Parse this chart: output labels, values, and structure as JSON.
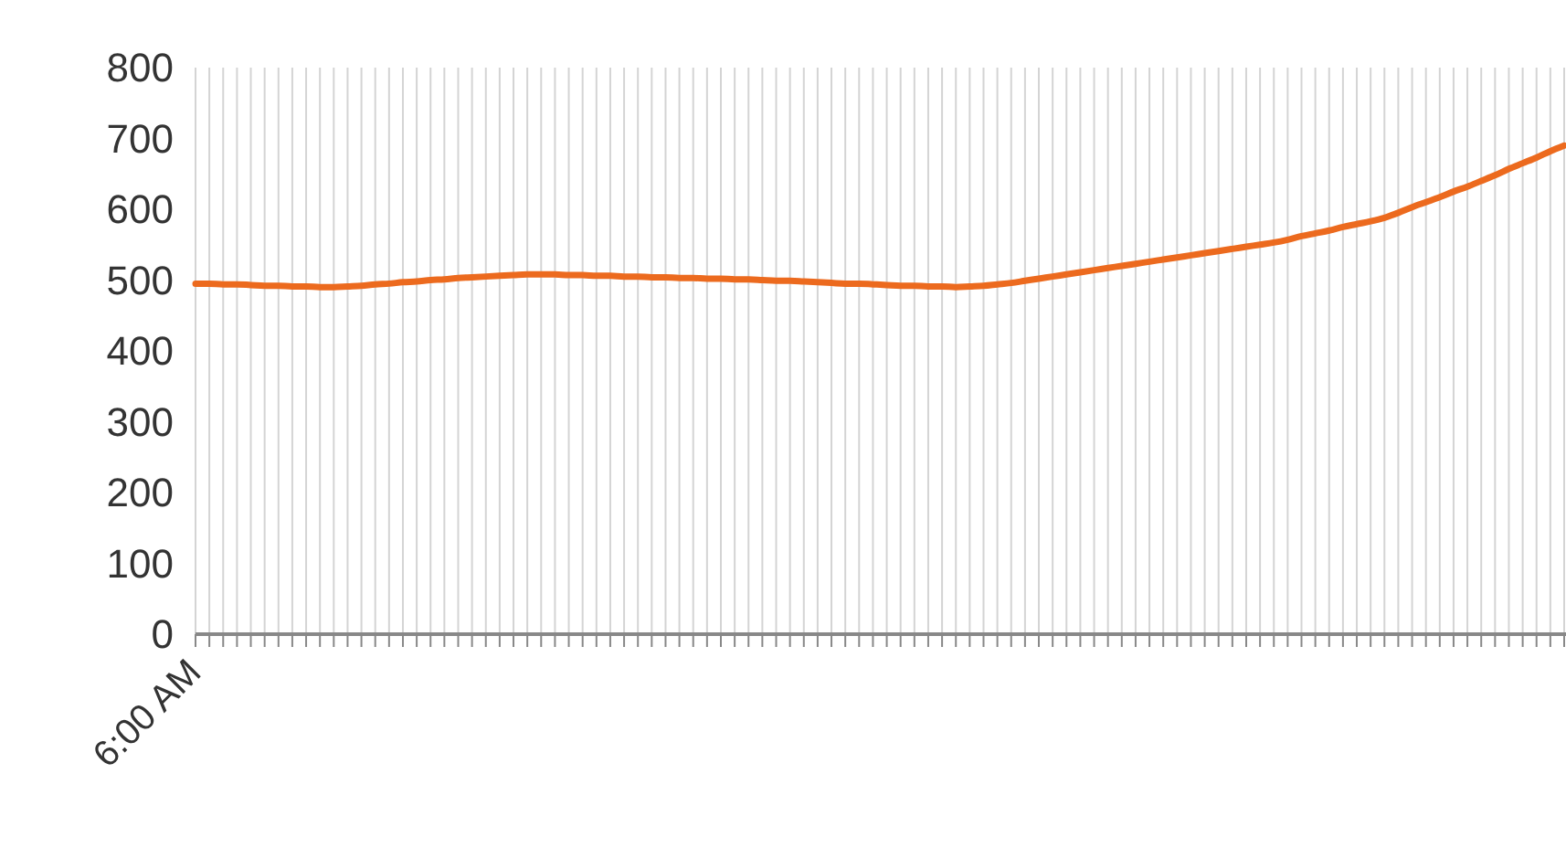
{
  "chart_data": {
    "type": "line",
    "categories": [
      "6:00 AM",
      null,
      null,
      null,
      null,
      null,
      null,
      null,
      null,
      null,
      null,
      null,
      null,
      null,
      null,
      null,
      null,
      null,
      null,
      null,
      null,
      null,
      null,
      null,
      null,
      null,
      null,
      null,
      null,
      null,
      null,
      null,
      null,
      null,
      null,
      null,
      null,
      null,
      null,
      null,
      null,
      null,
      null,
      null,
      null,
      null,
      null,
      null,
      null,
      null,
      null,
      null,
      null,
      null,
      null,
      null,
      null,
      null,
      null,
      null,
      null,
      null,
      null,
      null,
      null,
      null,
      null,
      null,
      null,
      null,
      null,
      null,
      null,
      null,
      null,
      null,
      null,
      null,
      null,
      null,
      null,
      null,
      null,
      null,
      null,
      null,
      null,
      null,
      null,
      null,
      null,
      null,
      null,
      null,
      null,
      null,
      null,
      null,
      null,
      null
    ],
    "series": [
      {
        "color": "#ec6a1e",
        "values": [
          495,
          495,
          494,
          494,
          493,
          492,
          492,
          491,
          491,
          490,
          490,
          491,
          492,
          494,
          495,
          497,
          498,
          500,
          501,
          503,
          504,
          505,
          506,
          507,
          508,
          508,
          508,
          507,
          507,
          506,
          506,
          505,
          505,
          504,
          504,
          503,
          503,
          502,
          502,
          501,
          501,
          500,
          499,
          499,
          498,
          497,
          496,
          495,
          495,
          494,
          493,
          492,
          492,
          491,
          491,
          490,
          491,
          492,
          494,
          496,
          499,
          502,
          505,
          508,
          511,
          514,
          517,
          520,
          523,
          526,
          529,
          532,
          535,
          538,
          541,
          544,
          547,
          550,
          553,
          557,
          562,
          566,
          570,
          575,
          579,
          583,
          588,
          595,
          603,
          610,
          617,
          625,
          632,
          640,
          648,
          657,
          665,
          673,
          682,
          690
        ]
      }
    ],
    "ylim": [
      0,
      800
    ],
    "yticks": [
      0,
      100,
      200,
      300,
      400,
      500,
      600,
      700,
      800
    ],
    "grid": "x",
    "marker": "none",
    "line_style": "solid"
  }
}
